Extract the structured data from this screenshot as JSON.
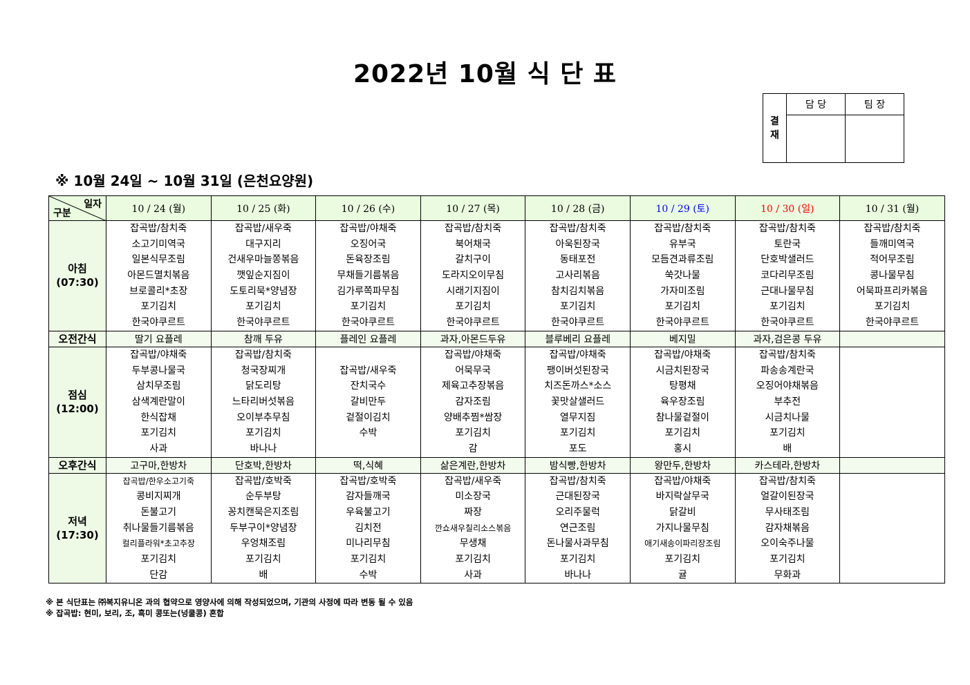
{
  "title": "2022년 10월 식 단 표",
  "approval": {
    "label": "결\n재",
    "label_chars": [
      "결",
      "재"
    ],
    "columns": [
      "담 당",
      "팀 장"
    ]
  },
  "subtitle": "※ 10월 24일 ~ 10월 31일 (은천요양원)",
  "colors": {
    "saturday": "#0000ff",
    "sunday": "#ff0000",
    "header_bg": "#eafbe0"
  },
  "corner": {
    "top": "일자",
    "bottom": "구분"
  },
  "days": [
    {
      "label": "10 / 24 (월)",
      "type": "weekday"
    },
    {
      "label": "10 / 25 (화)",
      "type": "weekday"
    },
    {
      "label": "10 / 26 (수)",
      "type": "weekday"
    },
    {
      "label": "10 / 27 (목)",
      "type": "weekday"
    },
    {
      "label": "10 / 28 (금)",
      "type": "weekday"
    },
    {
      "label": "10 / 29 (토)",
      "type": "saturday"
    },
    {
      "label": "10 / 30 (일)",
      "type": "sunday"
    },
    {
      "label": "10 / 31 (월)",
      "type": "weekday"
    }
  ],
  "rows": [
    {
      "kind": "meal",
      "label": [
        "아침",
        "(07:30)"
      ],
      "cells": [
        [
          "잡곡밥/참치죽",
          "소고기미역국",
          "일본식무조림",
          "아몬드멸치볶음",
          "브로콜리*초장",
          "포기김치",
          "한국야쿠르트"
        ],
        [
          "잡곡밥/새우죽",
          "대구지리",
          "건새우마늘쫑볶음",
          "깻잎순지짐이",
          "도토리묵*양념장",
          "포기김치",
          "한국야쿠르트"
        ],
        [
          "잡곡밥/야채죽",
          "오징어국",
          "돈육장조림",
          "무채들기름볶음",
          "김가루쪽파무침",
          "포기김치",
          "한국야쿠르트"
        ],
        [
          "잡곡밥/참치죽",
          "북어채국",
          "갈치구이",
          "도라지오이무침",
          "시래기지짐이",
          "포기김치",
          "한국야쿠르트"
        ],
        [
          "잡곡밥/참치죽",
          "아욱된장국",
          "동태포전",
          "고사리볶음",
          "참치김치볶음",
          "포기김치",
          "한국야쿠르트"
        ],
        [
          "잡곡밥/참치죽",
          "유부국",
          "모듬견과류조림",
          "쑥갓나물",
          "가자미조림",
          "포기김치",
          "한국야쿠르트"
        ],
        [
          "잡곡밥/참치죽",
          "토란국",
          "단호박샐러드",
          "코다리무조림",
          "근대나물무침",
          "포기김치",
          "한국야쿠르트"
        ],
        [
          "잡곡밥/참치죽",
          "들깨미역국",
          "적어무조림",
          "콩나물무침",
          "어묵파프리카볶음",
          "포기김치",
          "한국야쿠르트"
        ]
      ]
    },
    {
      "kind": "snack",
      "label": [
        "오전간식"
      ],
      "cells": [
        "딸기 요플레",
        "참깨 두유",
        "플레인 요플레",
        "과자,아몬드두유",
        "블루베리 요플레",
        "베지밀",
        "과자,검은콩 두유",
        ""
      ]
    },
    {
      "kind": "meal",
      "label": [
        "점심",
        "(12:00)"
      ],
      "cells": [
        [
          "잡곡밥/야채죽",
          "두부콩나물국",
          "삼치무조림",
          "삼색계란말이",
          "한식잡채",
          "포기김치",
          "사과"
        ],
        [
          "잡곡밥/참치죽",
          "청국장찌개",
          "닭도리탕",
          "느타리버섯볶음",
          "오이부추무침",
          "포기김치",
          "바나나"
        ],
        [
          "",
          "잡곡밥/새우죽",
          "잔치국수",
          "갈비만두",
          "겉절이김치",
          "수박",
          ""
        ],
        [
          "잡곡밥/야채죽",
          "어묵무국",
          "제육고추장볶음",
          "감자조림",
          "양배추찜*쌈장",
          "포기김치",
          "감"
        ],
        [
          "잡곡밥/야채죽",
          "팽이버섯된장국",
          "치즈돈까스*소스",
          "꽃맛살샐러드",
          "열무지짐",
          "포기김치",
          "포도"
        ],
        [
          "잡곡밥/야채죽",
          "시금치된장국",
          "탕평채",
          "육우장조림",
          "참나물겉절이",
          "포기김치",
          "홍시"
        ],
        [
          "잡곡밥/참치죽",
          "파송송계란국",
          "오징어야채볶음",
          "부추전",
          "시금치나물",
          "포기김치",
          "배"
        ],
        []
      ]
    },
    {
      "kind": "snack",
      "label": [
        "오후간식"
      ],
      "cells": [
        "고구마,한방차",
        "단호박,한방차",
        "떡,식혜",
        "삶은계란,한방차",
        "밤식빵,한방차",
        "왕만두,한방차",
        "카스테라,한방차",
        ""
      ]
    },
    {
      "kind": "meal",
      "label": [
        "저녁",
        "(17:30)"
      ],
      "cells": [
        [
          "잡곡밥/한우소고기죽",
          "콩비지찌개",
          "돈불고기",
          "취나물들기름볶음",
          "컬리플라워*초고추장",
          "포기김치",
          "단감"
        ],
        [
          "잡곡밥/호박죽",
          "순두부탕",
          "꽁치캔묵은지조림",
          "두부구이*양념장",
          "우엉채조림",
          "포기김치",
          "배"
        ],
        [
          "잡곡밥/호박죽",
          "감자들깨국",
          "우육불고기",
          "김치전",
          "미나리무침",
          "포기김치",
          "수박"
        ],
        [
          "잡곡밥/새우죽",
          "미소장국",
          "짜장",
          "깐쇼새우칠리소스볶음",
          "무생채",
          "포기김치",
          "사과"
        ],
        [
          "잡곡밥/참치죽",
          "근대된장국",
          "오리주물럭",
          "연근조림",
          "돈나물사과무침",
          "포기김치",
          "바나나"
        ],
        [
          "잡곡밥/야채죽",
          "바지락살무국",
          "닭갈비",
          "가지나물무침",
          "애기새송이파리장조림",
          "포기김치",
          "귤"
        ],
        [
          "잡곡밥/참치죽",
          "얼갈이된장국",
          "무사태조림",
          "감자채볶음",
          "오이숙주나물",
          "포기김치",
          "무화과"
        ],
        []
      ]
    }
  ],
  "notes": [
    "※ 본 식단표는 ㈜복지유니온 과의 협약으로 영양사에 의해 작성되었으며, 기관의 사정에 따라 변동 될 수 있음",
    "※ 잡곡밥: 현미, 보리, 조, 흑미 콩또는(넝쿨콩) 혼합"
  ]
}
